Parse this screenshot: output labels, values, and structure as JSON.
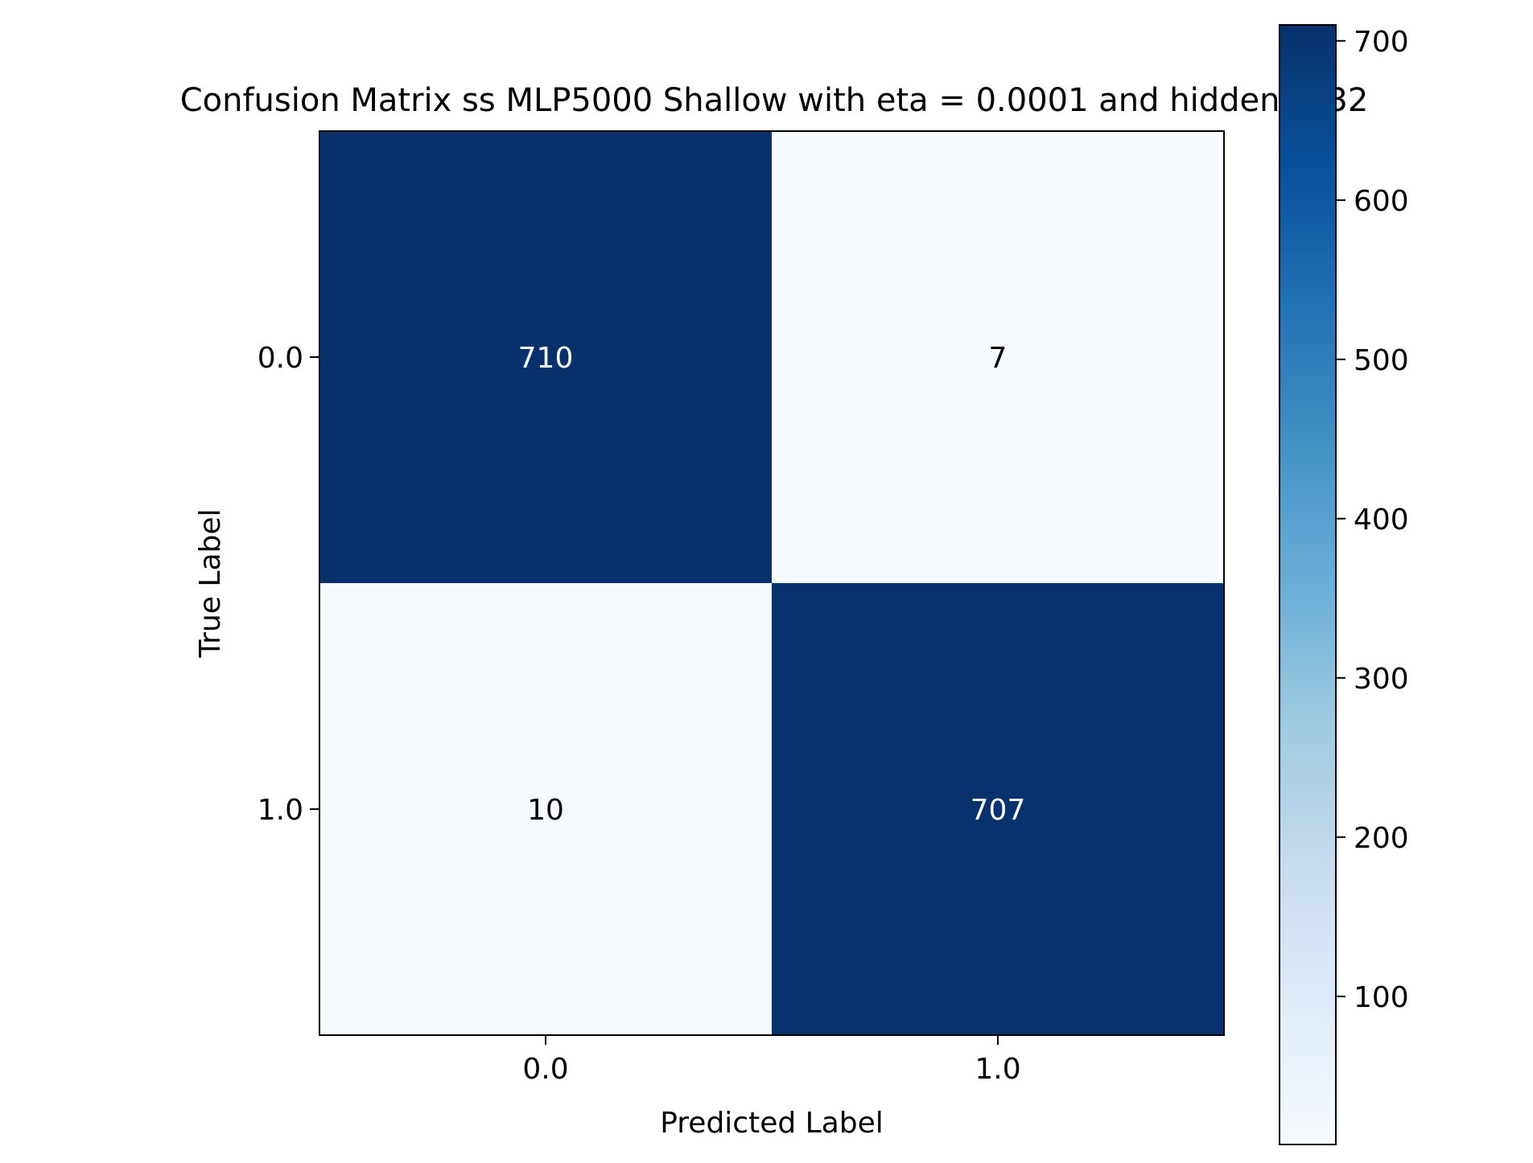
{
  "chart_data": {
    "type": "heatmap",
    "title": "Confusion Matrix ss MLP5000 Shallow with eta = 0.0001 and hidden = 32",
    "xlabel": "Predicted Label",
    "ylabel": "True Label",
    "x_categories": [
      "0.0",
      "1.0"
    ],
    "y_categories": [
      "0.0",
      "1.0"
    ],
    "matrix": [
      [
        710,
        7
      ],
      [
        10,
        707
      ]
    ],
    "colormap": "Blues",
    "colorbar": {
      "min": 7,
      "max": 710,
      "ticks": [
        100,
        200,
        300,
        400,
        500,
        600,
        700
      ]
    },
    "grid": false
  }
}
